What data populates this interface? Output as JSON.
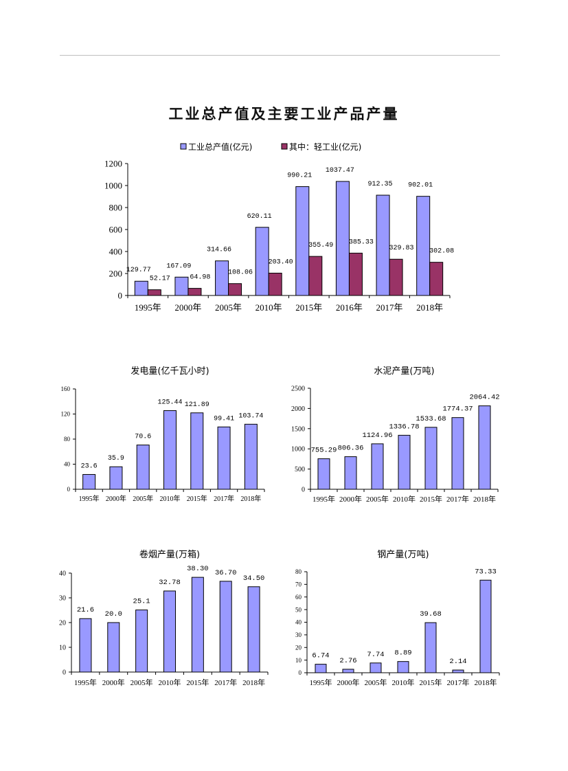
{
  "page_title": "工业总产值及主要工业产品产量",
  "colors": {
    "primary_bar": "#9999ff",
    "secondary_bar": "#993366",
    "axis": "#000000"
  },
  "chart_data": [
    {
      "id": "output-value",
      "type": "bar",
      "title": "",
      "categories": [
        "1995年",
        "2000年",
        "2005年",
        "2010年",
        "2015年",
        "2016年",
        "2017年",
        "2018年"
      ],
      "series": [
        {
          "name": "工业总产值(亿元)",
          "values": [
            129.77,
            167.09,
            314.66,
            620.11,
            990.21,
            1037.47,
            912.35,
            902.01
          ],
          "labels": [
            "129.77",
            "167.09",
            "314.66",
            "620.11",
            "990.21",
            "1037.47",
            "912.35",
            "902.01"
          ],
          "color": "#9999ff"
        },
        {
          "name": "其中：轻工业(亿元)",
          "values": [
            52.17,
            64.98,
            108.06,
            203.4,
            355.49,
            385.33,
            329.83,
            302.08
          ],
          "labels": [
            "52.17",
            "64.98",
            "108.06",
            "203.40",
            "355.49",
            "385.33",
            "329.83",
            "302.08"
          ],
          "color": "#993366"
        }
      ],
      "ylim": [
        0,
        1200
      ],
      "yticks": [
        0,
        200,
        400,
        600,
        800,
        1000,
        1200
      ],
      "legend": "top"
    },
    {
      "id": "electricity",
      "type": "bar",
      "title": "发电量(亿千瓦小时)",
      "categories": [
        "1995年",
        "2000年",
        "2005年",
        "2010年",
        "2015年",
        "2017年",
        "2018年"
      ],
      "series": [
        {
          "name": "发电量",
          "values": [
            23.6,
            35.9,
            70.6,
            125.44,
            121.89,
            99.41,
            103.74
          ],
          "labels": [
            "23.6",
            "35.9",
            "70.6",
            "125.44",
            "121.89",
            "99.41",
            "103.74"
          ],
          "color": "#9999ff"
        }
      ],
      "ylim": [
        0,
        160
      ],
      "yticks": [
        0,
        40,
        80,
        120,
        160
      ]
    },
    {
      "id": "cement",
      "type": "bar",
      "title": "水泥产量(万吨)",
      "categories": [
        "1995年",
        "2000年",
        "2005年",
        "2010年",
        "2015年",
        "2017年",
        "2018年"
      ],
      "series": [
        {
          "name": "水泥产量",
          "values": [
            755.29,
            806.36,
            1124.96,
            1336.78,
            1533.68,
            1774.37,
            2064.42
          ],
          "labels": [
            "755.29",
            "806.36",
            "1124.96",
            "1336.78",
            "1533.68",
            "1774.37",
            "2064.42"
          ],
          "color": "#9999ff"
        }
      ],
      "ylim": [
        0,
        2500
      ],
      "yticks": [
        0,
        500,
        1000,
        1500,
        2000,
        2500
      ]
    },
    {
      "id": "cigarettes",
      "type": "bar",
      "title": "卷烟产量(万箱)",
      "categories": [
        "1995年",
        "2000年",
        "2005年",
        "2010年",
        "2015年",
        "2017年",
        "2018年"
      ],
      "series": [
        {
          "name": "卷烟产量",
          "values": [
            21.6,
            20.0,
            25.1,
            32.78,
            38.3,
            36.7,
            34.5
          ],
          "labels": [
            "21.6",
            "20.0",
            "25.1",
            "32.78",
            "38.30",
            "36.70",
            "34.50"
          ],
          "color": "#9999ff"
        }
      ],
      "ylim": [
        0,
        40
      ],
      "yticks": [
        0,
        10,
        20,
        30,
        40
      ]
    },
    {
      "id": "steel",
      "type": "bar",
      "title": "钢产量(万吨)",
      "categories": [
        "1995年",
        "2000年",
        "2005年",
        "2010年",
        "2015年",
        "2017年",
        "2018年"
      ],
      "series": [
        {
          "name": "钢产量",
          "values": [
            6.74,
            2.76,
            7.74,
            8.89,
            39.68,
            2.14,
            73.33
          ],
          "labels": [
            "6.74",
            "2.76",
            "7.74",
            "8.89",
            "39.68",
            "2.14",
            "73.33"
          ],
          "color": "#9999ff"
        }
      ],
      "ylim": [
        0,
        80
      ],
      "yticks": [
        0,
        10,
        20,
        30,
        40,
        50,
        60,
        70,
        80
      ]
    }
  ]
}
